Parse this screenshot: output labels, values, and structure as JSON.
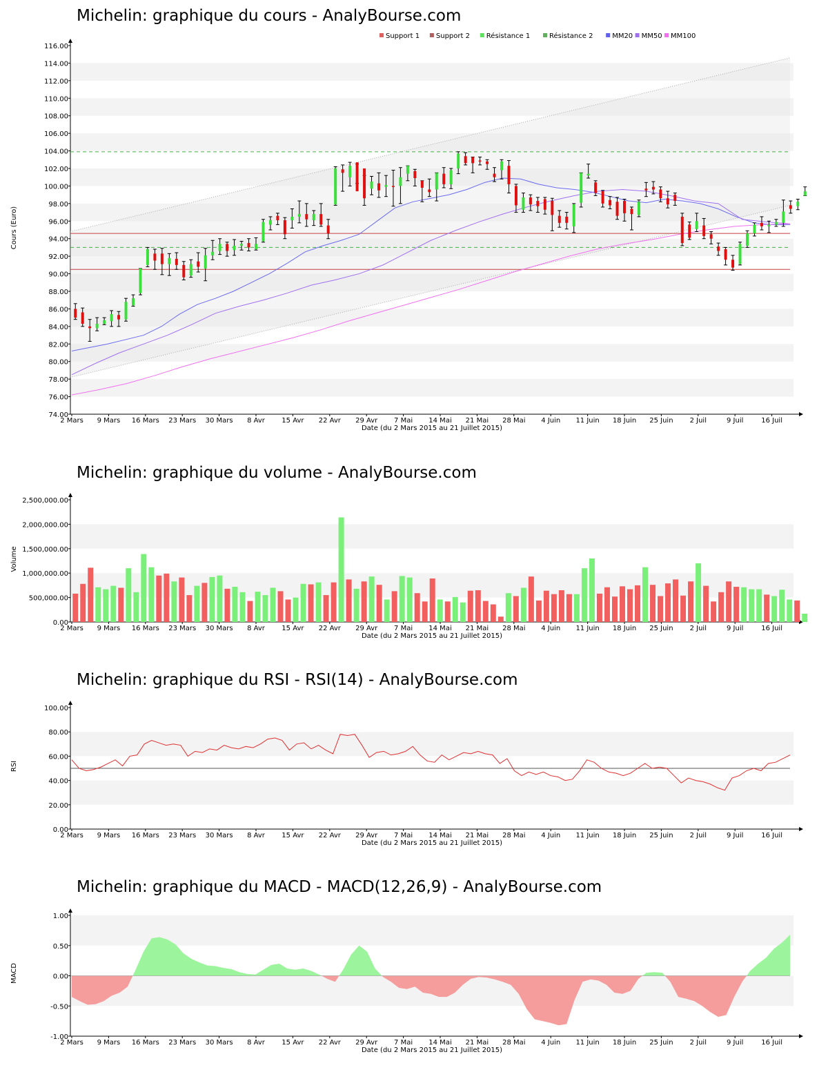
{
  "chart_data": [
    {
      "type": "candlestick",
      "title": "Michelin: graphique du cours - AnalyBourse.com",
      "xlabel": "Date (du 2 Mars 2015 au 21 Juillet 2015)",
      "ylabel": "Cours (Euro)",
      "ylim": [
        74,
        116
      ],
      "yticks": [
        "74.00",
        "76.00",
        "78.00",
        "80.00",
        "82.00",
        "84.00",
        "86.00",
        "88.00",
        "90.00",
        "92.00",
        "94.00",
        "96.00",
        "98.00",
        "100.00",
        "102.00",
        "104.00",
        "106.00",
        "108.00",
        "110.00",
        "112.00",
        "114.00",
        "116.00"
      ],
      "xticks": [
        "2 Mars",
        "9 Mars",
        "16 Mars",
        "23 Mars",
        "30 Mars",
        "8 Avr",
        "15 Avr",
        "22 Avr",
        "29 Avr",
        "7 Mai",
        "14 Mai",
        "21 Mai",
        "28 Mai",
        "4 Juin",
        "11 Juin",
        "18 Juin",
        "25 Juin",
        "2 Juil",
        "9 Juil",
        "16 Juil"
      ],
      "legend": [
        {
          "name": "Support 1",
          "color": "#e06060"
        },
        {
          "name": "Support 2",
          "color": "#b06060"
        },
        {
          "name": "Résistance 1",
          "color": "#60e060"
        },
        {
          "name": "Résistance 2",
          "color": "#60b060"
        },
        {
          "name": "MM20",
          "color": "#6060f0"
        },
        {
          "name": "MM50",
          "color": "#a070f0"
        },
        {
          "name": "MM100",
          "color": "#f070f0"
        }
      ],
      "levels": {
        "support_1": 94.6,
        "support_2": 90.5,
        "resistance_1": 93.0,
        "resistance_2": 103.9
      },
      "trend_channel": {
        "upper": [
          94.8,
          114.6
        ],
        "lower": [
          78.2,
          97.8
        ]
      },
      "candles": [
        [
          86.0,
          85.0,
          86.6,
          84.8
        ],
        [
          85.6,
          84.3,
          86.1,
          84.0
        ],
        [
          84.0,
          83.8,
          84.8,
          82.3
        ],
        [
          83.8,
          84.3,
          85.0,
          83.5
        ],
        [
          84.3,
          84.7,
          85.0,
          84.2
        ],
        [
          84.6,
          85.4,
          85.8,
          84.0
        ],
        [
          85.3,
          84.8,
          85.7,
          84.0
        ],
        [
          84.8,
          86.8,
          87.2,
          84.6
        ],
        [
          86.4,
          87.2,
          87.6,
          86.3
        ],
        [
          87.8,
          90.6,
          90.6,
          87.6
        ],
        [
          91.0,
          92.8,
          93.0,
          90.8
        ],
        [
          92.3,
          91.5,
          92.8,
          90.5
        ],
        [
          92.3,
          91.1,
          92.9,
          89.9
        ],
        [
          91.1,
          91.8,
          92.3,
          89.8
        ],
        [
          91.7,
          91.0,
          92.4,
          90.5
        ],
        [
          91.0,
          89.6,
          91.4,
          89.3
        ],
        [
          89.8,
          91.1,
          91.6,
          89.6
        ],
        [
          91.4,
          90.8,
          92.4,
          90.2
        ],
        [
          90.6,
          92.1,
          92.9,
          89.2
        ],
        [
          92.1,
          92.5,
          93.8,
          91.6
        ],
        [
          92.6,
          93.4,
          94.0,
          92.2
        ],
        [
          93.4,
          92.6,
          93.6,
          92.0
        ],
        [
          92.7,
          93.2,
          93.9,
          92.1
        ],
        [
          93.2,
          93.4,
          93.7,
          92.7
        ],
        [
          93.5,
          93.0,
          94.0,
          92.6
        ],
        [
          92.8,
          93.4,
          94.1,
          92.7
        ],
        [
          93.7,
          95.9,
          96.2,
          93.6
        ],
        [
          95.6,
          96.1,
          96.5,
          95.0
        ],
        [
          96.6,
          96.1,
          96.9,
          95.6
        ],
        [
          96.1,
          94.5,
          96.4,
          94.0
        ],
        [
          96.1,
          96.5,
          97.4,
          95.2
        ],
        [
          96.5,
          96.8,
          98.3,
          95.8
        ],
        [
          96.8,
          96.2,
          98.0,
          95.4
        ],
        [
          96.1,
          96.8,
          97.2,
          95.5
        ],
        [
          96.8,
          95.6,
          98.0,
          95.4
        ],
        [
          95.5,
          94.6,
          96.2,
          94.0
        ],
        [
          97.9,
          102.0,
          102.2,
          97.8
        ],
        [
          101.9,
          101.5,
          102.4,
          99.4
        ],
        [
          101.0,
          102.3,
          102.7,
          100.0
        ],
        [
          102.7,
          99.4,
          102.5,
          100.3
        ],
        [
          102.0,
          98.6,
          101.2,
          97.8
        ],
        [
          99.7,
          100.5,
          101.1,
          99.0
        ],
        [
          100.3,
          99.5,
          101.5,
          98.7
        ],
        [
          99.9,
          100.1,
          101.2,
          98.8
        ],
        [
          100.0,
          99.9,
          101.8,
          97.7
        ],
        [
          100.0,
          101.0,
          102.1,
          98.0
        ],
        [
          101.4,
          102.3,
          102.3,
          100.6
        ],
        [
          101.7,
          100.9,
          101.9,
          100.0
        ],
        [
          100.6,
          99.8,
          100.6,
          98.2
        ],
        [
          99.6,
          99.3,
          100.8,
          98.8
        ],
        [
          99.6,
          101.5,
          101.5,
          98.3
        ],
        [
          101.4,
          100.2,
          102.1,
          99.8
        ],
        [
          100.2,
          101.8,
          102.0,
          99.7
        ],
        [
          102.0,
          103.7,
          103.9,
          101.4
        ],
        [
          103.4,
          102.6,
          103.8,
          102.4
        ],
        [
          103.3,
          102.6,
          103.3,
          101.5
        ],
        [
          102.9,
          102.8,
          103.3,
          102.4
        ],
        [
          102.8,
          102.5,
          103.0,
          101.9
        ],
        [
          101.4,
          101.0,
          102.1,
          100.5
        ],
        [
          101.8,
          102.8,
          103.0,
          100.8
        ],
        [
          102.3,
          100.2,
          102.9,
          99.2
        ],
        [
          100.0,
          97.8,
          100.2,
          97.0
        ],
        [
          97.3,
          98.7,
          99.2,
          97.0
        ],
        [
          98.7,
          97.9,
          99.0,
          97.2
        ],
        [
          98.3,
          97.7,
          98.7,
          97.0
        ],
        [
          98.5,
          97.3,
          98.7,
          96.8
        ],
        [
          98.3,
          96.7,
          98.6,
          94.9
        ],
        [
          96.6,
          95.8,
          97.2,
          95.3
        ],
        [
          96.5,
          95.8,
          97.0,
          95.1
        ],
        [
          95.4,
          97.9,
          98.0,
          94.7
        ],
        [
          98.1,
          101.5,
          101.5,
          97.6
        ],
        [
          101.2,
          101.4,
          102.5,
          100.9
        ],
        [
          100.4,
          99.2,
          100.6,
          98.9
        ],
        [
          99.4,
          98.0,
          99.5,
          97.6
        ],
        [
          98.4,
          97.8,
          98.8,
          97.4
        ],
        [
          98.2,
          96.6,
          98.7,
          96.2
        ],
        [
          98.3,
          96.9,
          98.5,
          96.0
        ],
        [
          97.4,
          96.8,
          97.6,
          95.0
        ],
        [
          96.7,
          98.2,
          98.4,
          96.5
        ],
        [
          99.7,
          99.5,
          100.4,
          98.8
        ],
        [
          99.9,
          99.6,
          100.5,
          99.1
        ],
        [
          99.6,
          98.6,
          99.9,
          98.2
        ],
        [
          98.6,
          97.9,
          99.4,
          97.5
        ],
        [
          99.0,
          98.3,
          99.2,
          97.8
        ],
        [
          96.5,
          93.5,
          96.9,
          93.2
        ],
        [
          95.6,
          94.1,
          95.9,
          93.9
        ],
        [
          95.1,
          96.0,
          96.9,
          94.8
        ],
        [
          95.5,
          94.3,
          96.3,
          94.0
        ],
        [
          94.5,
          94.0,
          94.8,
          93.4
        ],
        [
          93.1,
          92.6,
          93.5,
          92.1
        ],
        [
          92.8,
          91.6,
          93.0,
          91.0
        ],
        [
          91.6,
          90.7,
          92.1,
          90.4
        ],
        [
          91.1,
          93.4,
          93.6,
          91.0
        ],
        [
          93.2,
          94.6,
          94.9,
          93.0
        ],
        [
          94.6,
          95.6,
          95.8,
          94.3
        ],
        [
          95.8,
          95.4,
          96.5,
          95.0
        ],
        [
          95.4,
          95.6,
          96.0,
          94.7
        ],
        [
          95.6,
          95.9,
          96.2,
          95.4
        ],
        [
          95.8,
          97.1,
          98.4,
          95.4
        ],
        [
          97.8,
          97.4,
          98.3,
          96.9
        ],
        [
          97.7,
          98.2,
          98.5,
          97.3
        ],
        [
          98.9,
          99.4,
          99.9,
          98.9
        ]
      ],
      "mm20_points": [
        81.2,
        81.6,
        82.0,
        82.5,
        83.0,
        84.0,
        85.4,
        86.5,
        87.2,
        88.0,
        89.0,
        90.0,
        91.2,
        92.5,
        93.2,
        93.8,
        94.5,
        96.0,
        97.5,
        98.2,
        98.6,
        99.0,
        99.6,
        100.4,
        100.9,
        100.8,
        100.2,
        99.8,
        99.6,
        99.3,
        98.8,
        98.3,
        98.1,
        98.5,
        98.3,
        98.0,
        97.4,
        96.5,
        95.8,
        95.6,
        95.6
      ],
      "mm50_points": [
        78.5,
        79.8,
        81.0,
        82.0,
        83.0,
        84.2,
        85.5,
        86.3,
        87.0,
        87.8,
        88.7,
        89.3,
        90.0,
        91.0,
        92.4,
        93.8,
        94.9,
        95.9,
        96.8,
        97.6,
        98.3,
        98.9,
        99.4,
        99.6,
        99.4,
        98.9,
        98.3,
        98.0,
        96.2,
        95.9,
        95.7
      ],
      "mm100_points": [
        76.2,
        76.8,
        77.5,
        78.4,
        79.4,
        80.3,
        81.1,
        81.9,
        82.7,
        83.6,
        84.6,
        85.5,
        86.4,
        87.3,
        88.2,
        89.2,
        90.2,
        91.1,
        92.0,
        92.8,
        93.4,
        93.9,
        94.5,
        95.0,
        95.4,
        95.6,
        95.7
      ]
    },
    {
      "type": "bar",
      "title": "Michelin: graphique du volume - AnalyBourse.com",
      "xlabel": "Date (du 2 Mars 2015 au 21 Juillet 2015)",
      "ylabel": "Volume",
      "ylim": [
        0,
        2500000
      ],
      "yticks": [
        "0.00",
        "500,000.00",
        "1,000,000.00",
        "1,500,000.00",
        "2,000,000.00",
        "2,500,000.00"
      ],
      "xticks": [
        "2 Mars",
        "9 Mars",
        "16 Mars",
        "23 Mars",
        "30 Mars",
        "8 Avr",
        "15 Avr",
        "22 Avr",
        "29 Avr",
        "7 Mai",
        "14 Mai",
        "21 Mai",
        "28 Mai",
        "4 Juin",
        "11 Juin",
        "18 Juin",
        "25 Juin",
        "2 Juil",
        "9 Juil",
        "16 Juil"
      ],
      "values": [
        580000,
        780000,
        1110000,
        710000,
        670000,
        740000,
        700000,
        1100000,
        610000,
        1390000,
        1120000,
        950000,
        990000,
        830000,
        910000,
        550000,
        740000,
        800000,
        920000,
        950000,
        680000,
        720000,
        610000,
        430000,
        620000,
        550000,
        700000,
        630000,
        460000,
        500000,
        780000,
        770000,
        810000,
        550000,
        810000,
        2140000,
        870000,
        680000,
        830000,
        930000,
        760000,
        460000,
        630000,
        940000,
        910000,
        590000,
        420000,
        890000,
        460000,
        420000,
        510000,
        400000,
        640000,
        650000,
        430000,
        360000,
        110000,
        590000,
        530000,
        700000,
        930000,
        440000,
        640000,
        570000,
        650000,
        570000,
        570000,
        1100000,
        1300000,
        580000,
        710000,
        520000,
        730000,
        670000,
        750000,
        1120000,
        760000,
        530000,
        790000,
        870000,
        540000,
        830000,
        1200000,
        740000,
        420000,
        610000,
        830000,
        720000,
        710000,
        670000,
        670000,
        560000,
        530000,
        660000,
        460000,
        440000,
        170000
      ],
      "colors_up_down": {
        "up": "#7af07a",
        "down": "#f25f5f"
      }
    },
    {
      "type": "line",
      "title": "Michelin: graphique du RSI - RSI(14) - AnalyBourse.com",
      "xlabel": "Date (du 2 Mars 2015 au 21 Juillet 2015)",
      "ylabel": "RSI",
      "ylim": [
        0,
        100
      ],
      "yticks": [
        "0.00",
        "20.00",
        "40.00",
        "60.00",
        "80.00",
        "100.00"
      ],
      "xticks": [
        "2 Mars",
        "9 Mars",
        "16 Mars",
        "23 Mars",
        "30 Mars",
        "8 Avr",
        "15 Avr",
        "22 Avr",
        "29 Avr",
        "7 Mai",
        "14 Mai",
        "21 Mai",
        "28 Mai",
        "4 Juin",
        "11 Juin",
        "18 Juin",
        "25 Juin",
        "2 Juil",
        "9 Juil",
        "16 Juil"
      ],
      "reference_line": 50,
      "values": [
        57,
        50,
        48,
        49,
        51,
        54,
        57,
        52,
        60,
        61,
        70,
        73,
        71,
        69,
        70,
        69,
        60,
        64,
        63,
        66,
        65,
        69,
        67,
        66,
        68,
        67,
        70,
        74,
        75,
        73,
        65,
        70,
        71,
        66,
        69,
        65,
        62,
        78,
        77,
        78,
        69,
        59,
        63,
        64,
        61,
        62,
        64,
        68,
        61,
        56,
        55,
        61,
        57,
        60,
        63,
        62,
        64,
        62,
        61,
        54,
        58,
        48,
        44,
        47,
        45,
        47,
        44,
        43,
        40,
        41,
        48,
        57,
        55,
        50,
        47,
        46,
        44,
        46,
        50,
        54,
        50,
        51,
        50,
        44,
        38,
        42,
        40,
        39,
        37,
        34,
        32,
        42,
        44,
        48,
        50,
        48,
        54,
        55,
        58,
        61
      ],
      "color": "#e03030"
    },
    {
      "type": "area",
      "title": "Michelin: graphique du MACD - MACD(12,26,9) - AnalyBourse.com",
      "xlabel": "Date (du 2 Mars 2015 au 21 Juillet 2015)",
      "ylabel": "MACD",
      "ylim": [
        -1,
        1
      ],
      "yticks": [
        "-1.00",
        "-0.50",
        "0.00",
        "0.50",
        "1.00"
      ],
      "xticks": [
        "2 Mars",
        "9 Mars",
        "16 Mars",
        "23 Mars",
        "30 Mars",
        "8 Avr",
        "15 Avr",
        "22 Avr",
        "29 Avr",
        "7 Mai",
        "14 Mai",
        "21 Mai",
        "28 Mai",
        "4 Juin",
        "11 Juin",
        "18 Juin",
        "25 Juin",
        "2 Juil",
        "9 Juil",
        "16 Juil"
      ],
      "values": [
        -0.35,
        -0.42,
        -0.48,
        -0.47,
        -0.42,
        -0.33,
        -0.28,
        -0.18,
        0.1,
        0.4,
        0.62,
        0.64,
        0.6,
        0.52,
        0.37,
        0.28,
        0.22,
        0.17,
        0.16,
        0.13,
        0.11,
        0.06,
        0.03,
        0.02,
        0.1,
        0.18,
        0.2,
        0.12,
        0.1,
        0.12,
        0.08,
        0.02,
        -0.05,
        -0.1,
        0.1,
        0.35,
        0.5,
        0.4,
        0.12,
        -0.02,
        -0.1,
        -0.2,
        -0.22,
        -0.18,
        -0.28,
        -0.3,
        -0.35,
        -0.35,
        -0.28,
        -0.15,
        -0.05,
        -0.02,
        -0.03,
        -0.06,
        -0.1,
        -0.15,
        -0.3,
        -0.55,
        -0.72,
        -0.75,
        -0.78,
        -0.82,
        -0.8,
        -0.4,
        -0.1,
        -0.06,
        -0.08,
        -0.15,
        -0.28,
        -0.3,
        -0.25,
        -0.05,
        0.05,
        0.06,
        0.05,
        -0.1,
        -0.35,
        -0.38,
        -0.42,
        -0.5,
        -0.6,
        -0.68,
        -0.65,
        -0.35,
        -0.1,
        0.08,
        0.2,
        0.3,
        0.45,
        0.55,
        0.68
      ],
      "colors": {
        "positive": "#9cf59c",
        "negative": "#f59c9c"
      }
    }
  ]
}
